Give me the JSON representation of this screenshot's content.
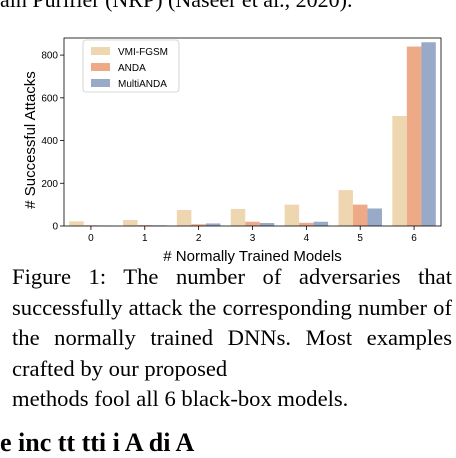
{
  "top_text": "ain Purifier (NRP) (Naseer et al., 2020).",
  "figure": {
    "caption_lines": [
      "Figure 1: The number of adversaries that",
      "successfully attack the corresponding",
      "number of the normally trained DNNs.",
      "Most examples crafted by our proposed",
      "methods fool all 6 black-box models."
    ]
  },
  "bottom_text": "e   inc    tt  tti    i  A    di  A",
  "chart_data": {
    "type": "bar",
    "categories": [
      "0",
      "1",
      "2",
      "3",
      "4",
      "5",
      "6"
    ],
    "series": [
      {
        "name": "VMI-FGSM",
        "color": "#eed7b0",
        "values": [
          22,
          28,
          75,
          80,
          100,
          168,
          515
        ]
      },
      {
        "name": "ANDA",
        "color": "#eea987",
        "values": [
          3,
          4,
          8,
          20,
          15,
          100,
          840
        ]
      },
      {
        "name": "MultiANDA",
        "color": "#98aac8",
        "values": [
          2,
          3,
          12,
          14,
          20,
          82,
          860
        ]
      }
    ],
    "xlabel": "# Normally Trained Models",
    "ylabel": "# Successful Attacks",
    "ylim": [
      0,
      880
    ],
    "yticks": [
      0,
      200,
      400,
      600,
      800
    ],
    "legend_position": "top-left",
    "grid": false
  }
}
